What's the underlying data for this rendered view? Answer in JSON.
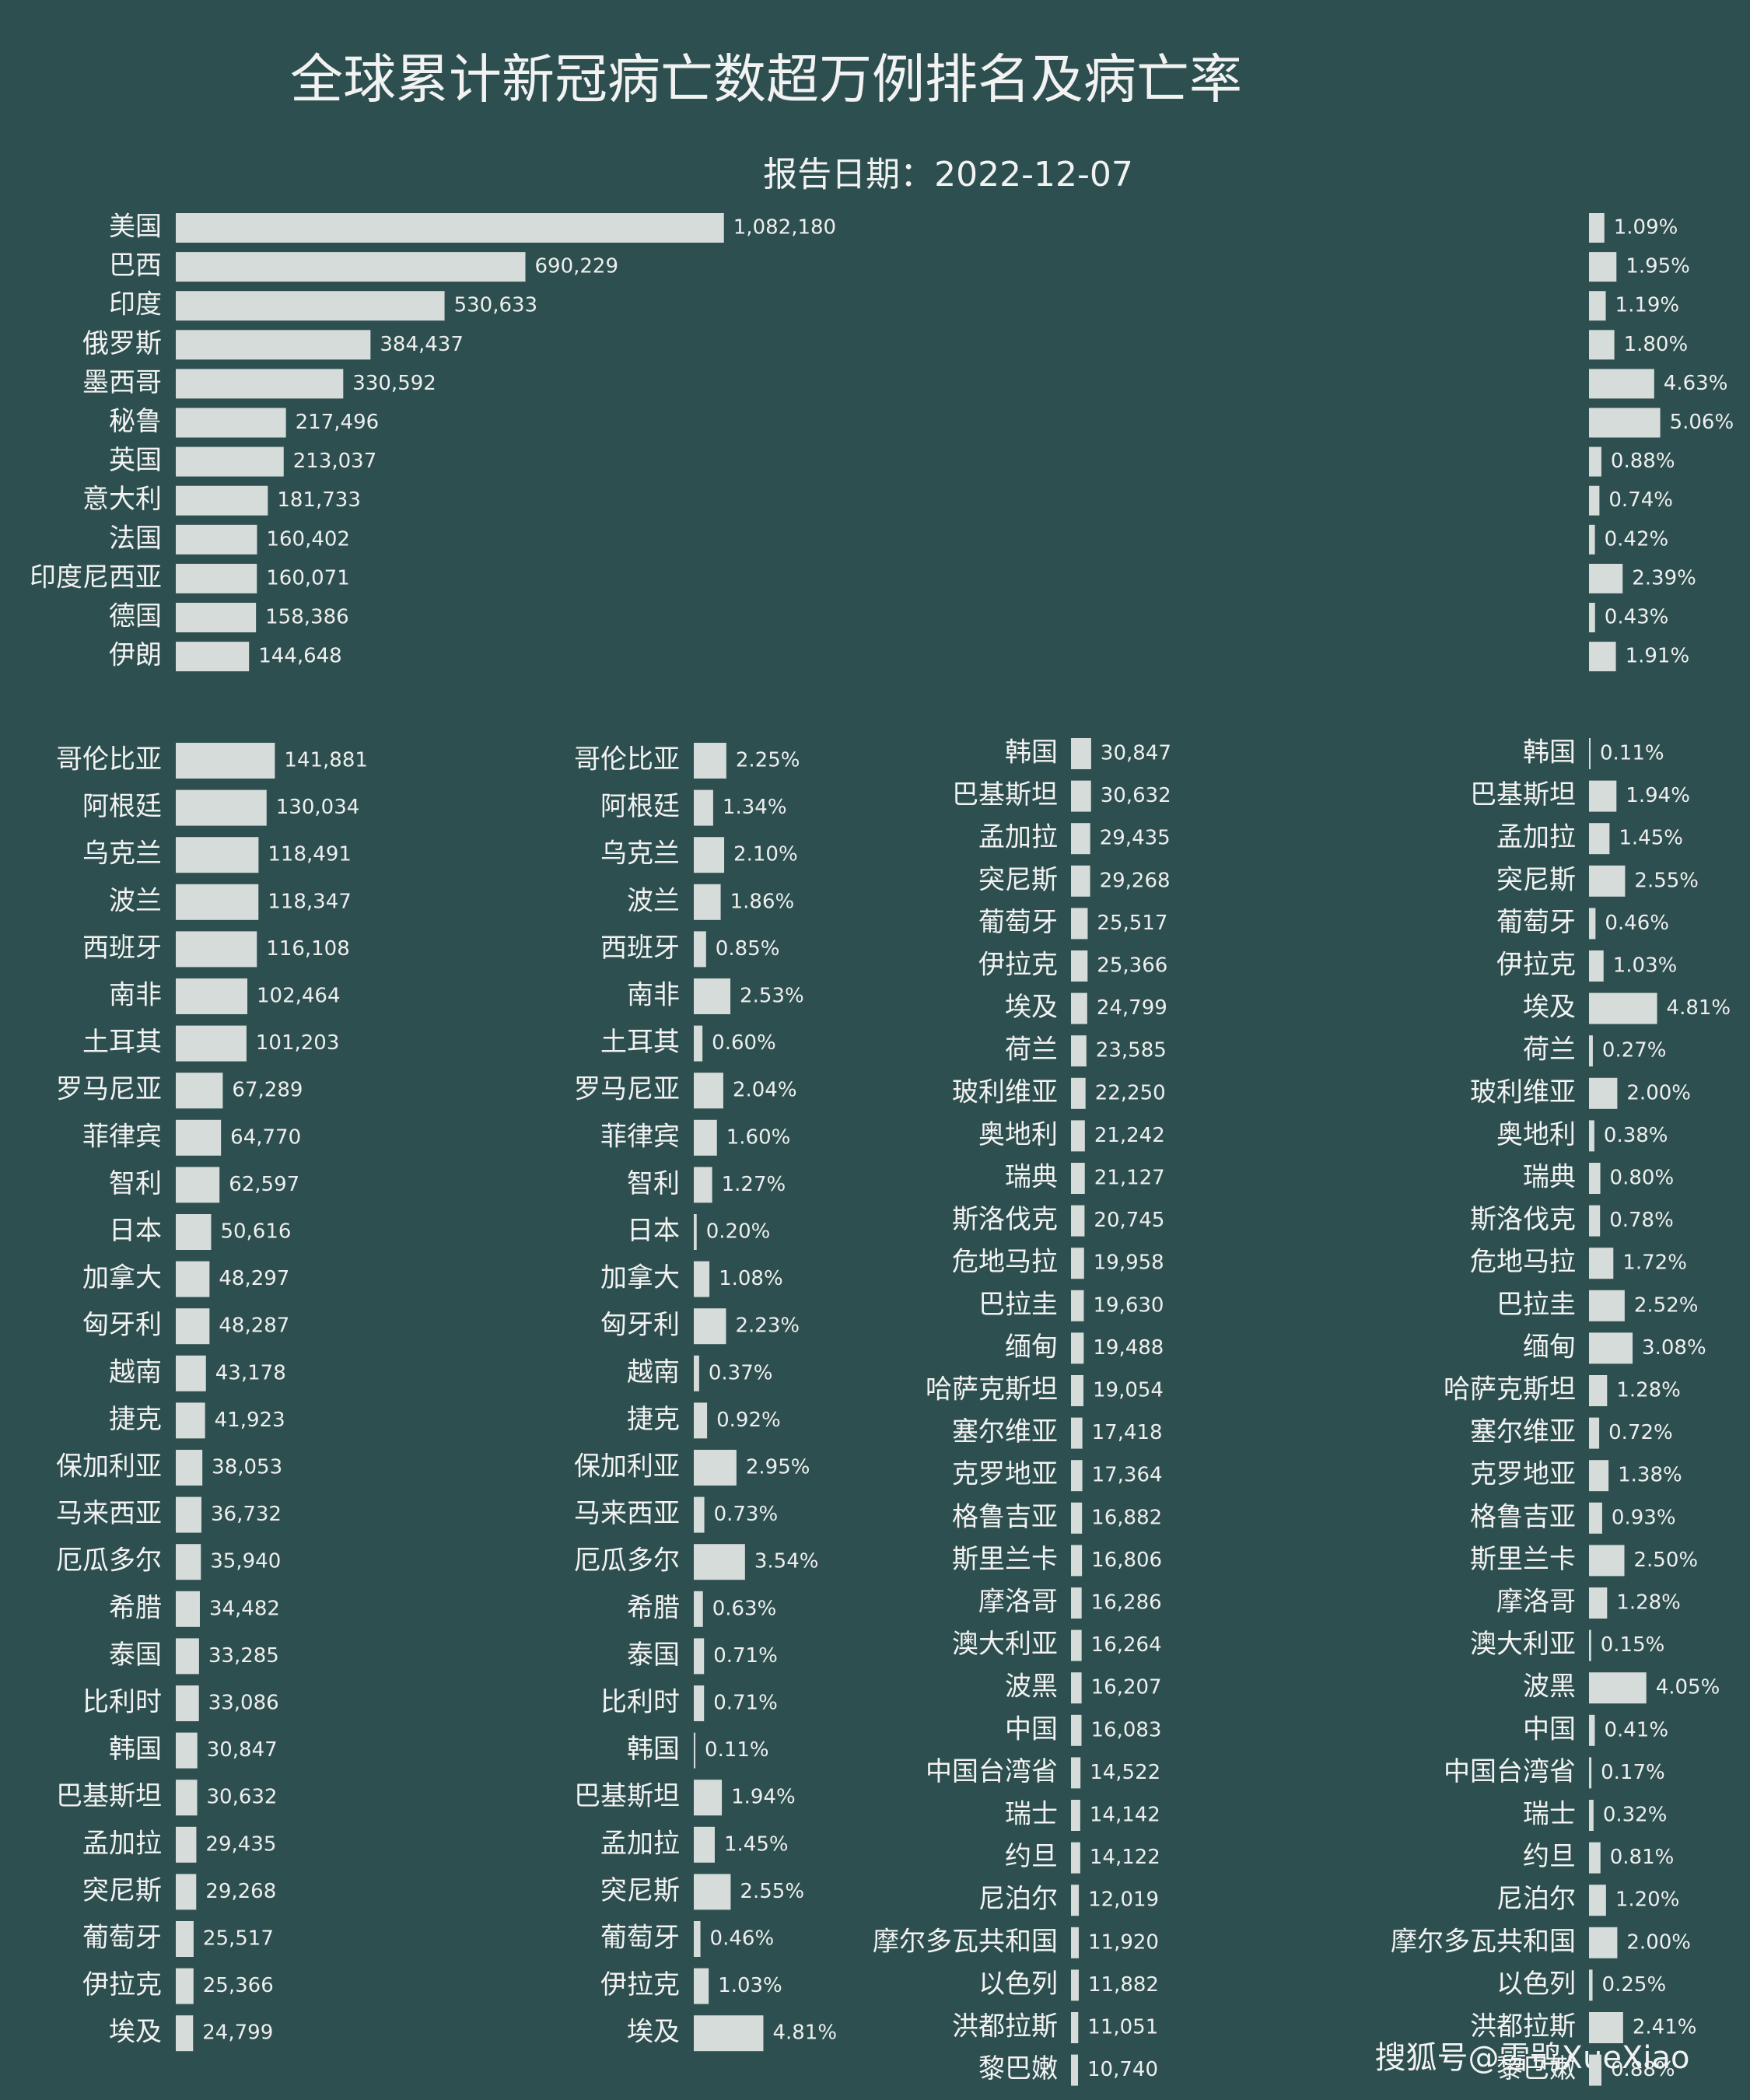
{
  "chart_data": [
    {
      "type": "bar",
      "orientation": "horizontal",
      "title": "全球累计新冠病亡数超万例排名及病亡率",
      "subtitle": "报告日期：2022-12-07",
      "color": "#d5dcda",
      "xlim": [
        0,
        1600000
      ],
      "categories": [
        "美国",
        "巴西",
        "印度",
        "俄罗斯",
        "墨西哥",
        "秘鲁",
        "英国",
        "意大利",
        "法国",
        "印度尼西亚",
        "德国",
        "伊朗"
      ],
      "values": [
        1082180,
        690229,
        530633,
        384437,
        330592,
        217496,
        213037,
        181733,
        160402,
        160071,
        158386,
        144648
      ],
      "value_labels": [
        "1,082,180",
        "690,229",
        "530,633",
        "384,437",
        "330,592",
        "217,496",
        "213,037",
        "181,733",
        "160,402",
        "160,071",
        "158,386",
        "144,648"
      ]
    },
    {
      "type": "bar",
      "orientation": "horizontal",
      "color": "#d5dcda",
      "xlim": [
        0,
        10
      ],
      "values": [
        1.09,
        1.95,
        1.19,
        1.8,
        4.63,
        5.06,
        0.88,
        0.74,
        0.42,
        2.39,
        0.43,
        1.91
      ],
      "value_labels": [
        "1.09%",
        "1.95%",
        "1.19%",
        "1.80%",
        "4.63%",
        "5.06%",
        "0.88%",
        "0.74%",
        "0.42%",
        "2.39%",
        "0.43%",
        "1.91%"
      ]
    },
    {
      "type": "bar",
      "orientation": "horizontal",
      "color": "#d5dcda",
      "xlim": [
        0,
        500000
      ],
      "categories": [
        "哥伦比亚",
        "阿根廷",
        "乌克兰",
        "波兰",
        "西班牙",
        "南非",
        "土耳其",
        "罗马尼亚",
        "菲律宾",
        "智利",
        "日本",
        "加拿大",
        "匈牙利",
        "越南",
        "捷克",
        "保加利亚",
        "马来西亚",
        "厄瓜多尔",
        "希腊",
        "泰国",
        "比利时",
        "韩国",
        "巴基斯坦",
        "孟加拉",
        "突尼斯",
        "葡萄牙",
        "伊拉克",
        "埃及"
      ],
      "values": [
        141881,
        130034,
        118491,
        118347,
        116108,
        102464,
        101203,
        67289,
        64770,
        62597,
        50616,
        48297,
        48287,
        43178,
        41923,
        38053,
        36732,
        35940,
        34482,
        33285,
        33086,
        30847,
        30632,
        29435,
        29268,
        25517,
        25366,
        24799
      ],
      "value_labels": [
        "141,881",
        "130,034",
        "118,491",
        "118,347",
        "116,108",
        "102,464",
        "101,203",
        "67,289",
        "64,770",
        "62,597",
        "50,616",
        "48,297",
        "48,287",
        "43,178",
        "41,923",
        "38,053",
        "36,732",
        "35,940",
        "34,482",
        "33,285",
        "33,086",
        "30,847",
        "30,632",
        "29,435",
        "29,268",
        "25,517",
        "25,366",
        "24,799"
      ]
    },
    {
      "type": "bar",
      "orientation": "horizontal",
      "color": "#d5dcda",
      "xlim": [
        0,
        10
      ],
      "categories": [
        "哥伦比亚",
        "阿根廷",
        "乌克兰",
        "波兰",
        "西班牙",
        "南非",
        "土耳其",
        "罗马尼亚",
        "菲律宾",
        "智利",
        "日本",
        "加拿大",
        "匈牙利",
        "越南",
        "捷克",
        "保加利亚",
        "马来西亚",
        "厄瓜多尔",
        "希腊",
        "泰国",
        "比利时",
        "韩国",
        "巴基斯坦",
        "孟加拉",
        "突尼斯",
        "葡萄牙",
        "伊拉克",
        "埃及"
      ],
      "values": [
        2.25,
        1.34,
        2.1,
        1.86,
        0.85,
        2.53,
        0.6,
        2.04,
        1.6,
        1.27,
        0.2,
        1.08,
        2.23,
        0.37,
        0.92,
        2.95,
        0.73,
        3.54,
        0.63,
        0.71,
        0.71,
        0.11,
        1.94,
        1.45,
        2.55,
        0.46,
        1.03,
        4.81
      ],
      "value_labels": [
        "2.25%",
        "1.34%",
        "2.10%",
        "1.86%",
        "0.85%",
        "2.53%",
        "0.60%",
        "2.04%",
        "1.60%",
        "1.27%",
        "0.20%",
        "1.08%",
        "2.23%",
        "0.37%",
        "0.92%",
        "2.95%",
        "0.73%",
        "3.54%",
        "0.63%",
        "0.71%",
        "0.71%",
        "0.11%",
        "1.94%",
        "1.45%",
        "2.55%",
        "0.46%",
        "1.03%",
        "4.81%"
      ]
    },
    {
      "type": "bar",
      "orientation": "horizontal",
      "color": "#d5dcda",
      "xlim": [
        0,
        100000
      ],
      "categories": [
        "韩国",
        "巴基斯坦",
        "孟加拉",
        "突尼斯",
        "葡萄牙",
        "伊拉克",
        "埃及",
        "荷兰",
        "玻利维亚",
        "奥地利",
        "瑞典",
        "斯洛伐克",
        "危地马拉",
        "巴拉圭",
        "缅甸",
        "哈萨克斯坦",
        "塞尔维亚",
        "克罗地亚",
        "格鲁吉亚",
        "斯里兰卡",
        "摩洛哥",
        "澳大利亚",
        "波黑",
        "中国",
        "中国台湾省",
        "瑞士",
        "约旦",
        "尼泊尔",
        "摩尔多瓦共和国",
        "以色列",
        "洪都拉斯",
        "黎巴嫩"
      ],
      "values": [
        30847,
        30632,
        29435,
        29268,
        25517,
        25366,
        24799,
        23585,
        22250,
        21242,
        21127,
        20745,
        19958,
        19630,
        19488,
        19054,
        17418,
        17364,
        16882,
        16806,
        16286,
        16264,
        16207,
        16083,
        14522,
        14142,
        14122,
        12019,
        11920,
        11882,
        11051,
        10740
      ],
      "value_labels": [
        "30,847",
        "30,632",
        "29,435",
        "29,268",
        "25,517",
        "25,366",
        "24,799",
        "23,585",
        "22,250",
        "21,242",
        "21,127",
        "20,745",
        "19,958",
        "19,630",
        "19,488",
        "19,054",
        "17,418",
        "17,364",
        "16,882",
        "16,806",
        "16,286",
        "16,264",
        "16,207",
        "16,083",
        "14,522",
        "14,142",
        "14,122",
        "12,019",
        "11,920",
        "11,882",
        "11,051",
        "10,740"
      ]
    },
    {
      "type": "bar",
      "orientation": "horizontal",
      "color": "#d5dcda",
      "xlim": [
        0,
        10
      ],
      "categories": [
        "韩国",
        "巴基斯坦",
        "孟加拉",
        "突尼斯",
        "葡萄牙",
        "伊拉克",
        "埃及",
        "荷兰",
        "玻利维亚",
        "奥地利",
        "瑞典",
        "斯洛伐克",
        "危地马拉",
        "巴拉圭",
        "缅甸",
        "哈萨克斯坦",
        "塞尔维亚",
        "克罗地亚",
        "格鲁吉亚",
        "斯里兰卡",
        "摩洛哥",
        "澳大利亚",
        "波黑",
        "中国",
        "中国台湾省",
        "瑞士",
        "约旦",
        "尼泊尔",
        "摩尔多瓦共和国",
        "以色列",
        "洪都拉斯",
        "黎巴嫩"
      ],
      "values": [
        0.11,
        1.94,
        1.45,
        2.55,
        0.46,
        1.03,
        4.81,
        0.27,
        2.0,
        0.38,
        0.8,
        0.78,
        1.72,
        2.52,
        3.08,
        1.28,
        0.72,
        1.38,
        0.93,
        2.5,
        1.28,
        0.15,
        4.05,
        0.41,
        0.17,
        0.32,
        0.81,
        1.2,
        2.0,
        0.25,
        2.41,
        0.88
      ],
      "value_labels": [
        "0.11%",
        "1.94%",
        "1.45%",
        "2.55%",
        "0.46%",
        "1.03%",
        "4.81%",
        "0.27%",
        "2.00%",
        "0.38%",
        "0.80%",
        "0.78%",
        "1.72%",
        "2.52%",
        "3.08%",
        "1.28%",
        "0.72%",
        "1.38%",
        "0.93%",
        "2.50%",
        "1.28%",
        "0.15%",
        "4.05%",
        "0.41%",
        "0.17%",
        "0.32%",
        "0.81%",
        "1.20%",
        "2.00%",
        "0.25%",
        "2.41%",
        "0.88%"
      ]
    }
  ],
  "watermark": "搜狐号@雪鸮XueXiao"
}
